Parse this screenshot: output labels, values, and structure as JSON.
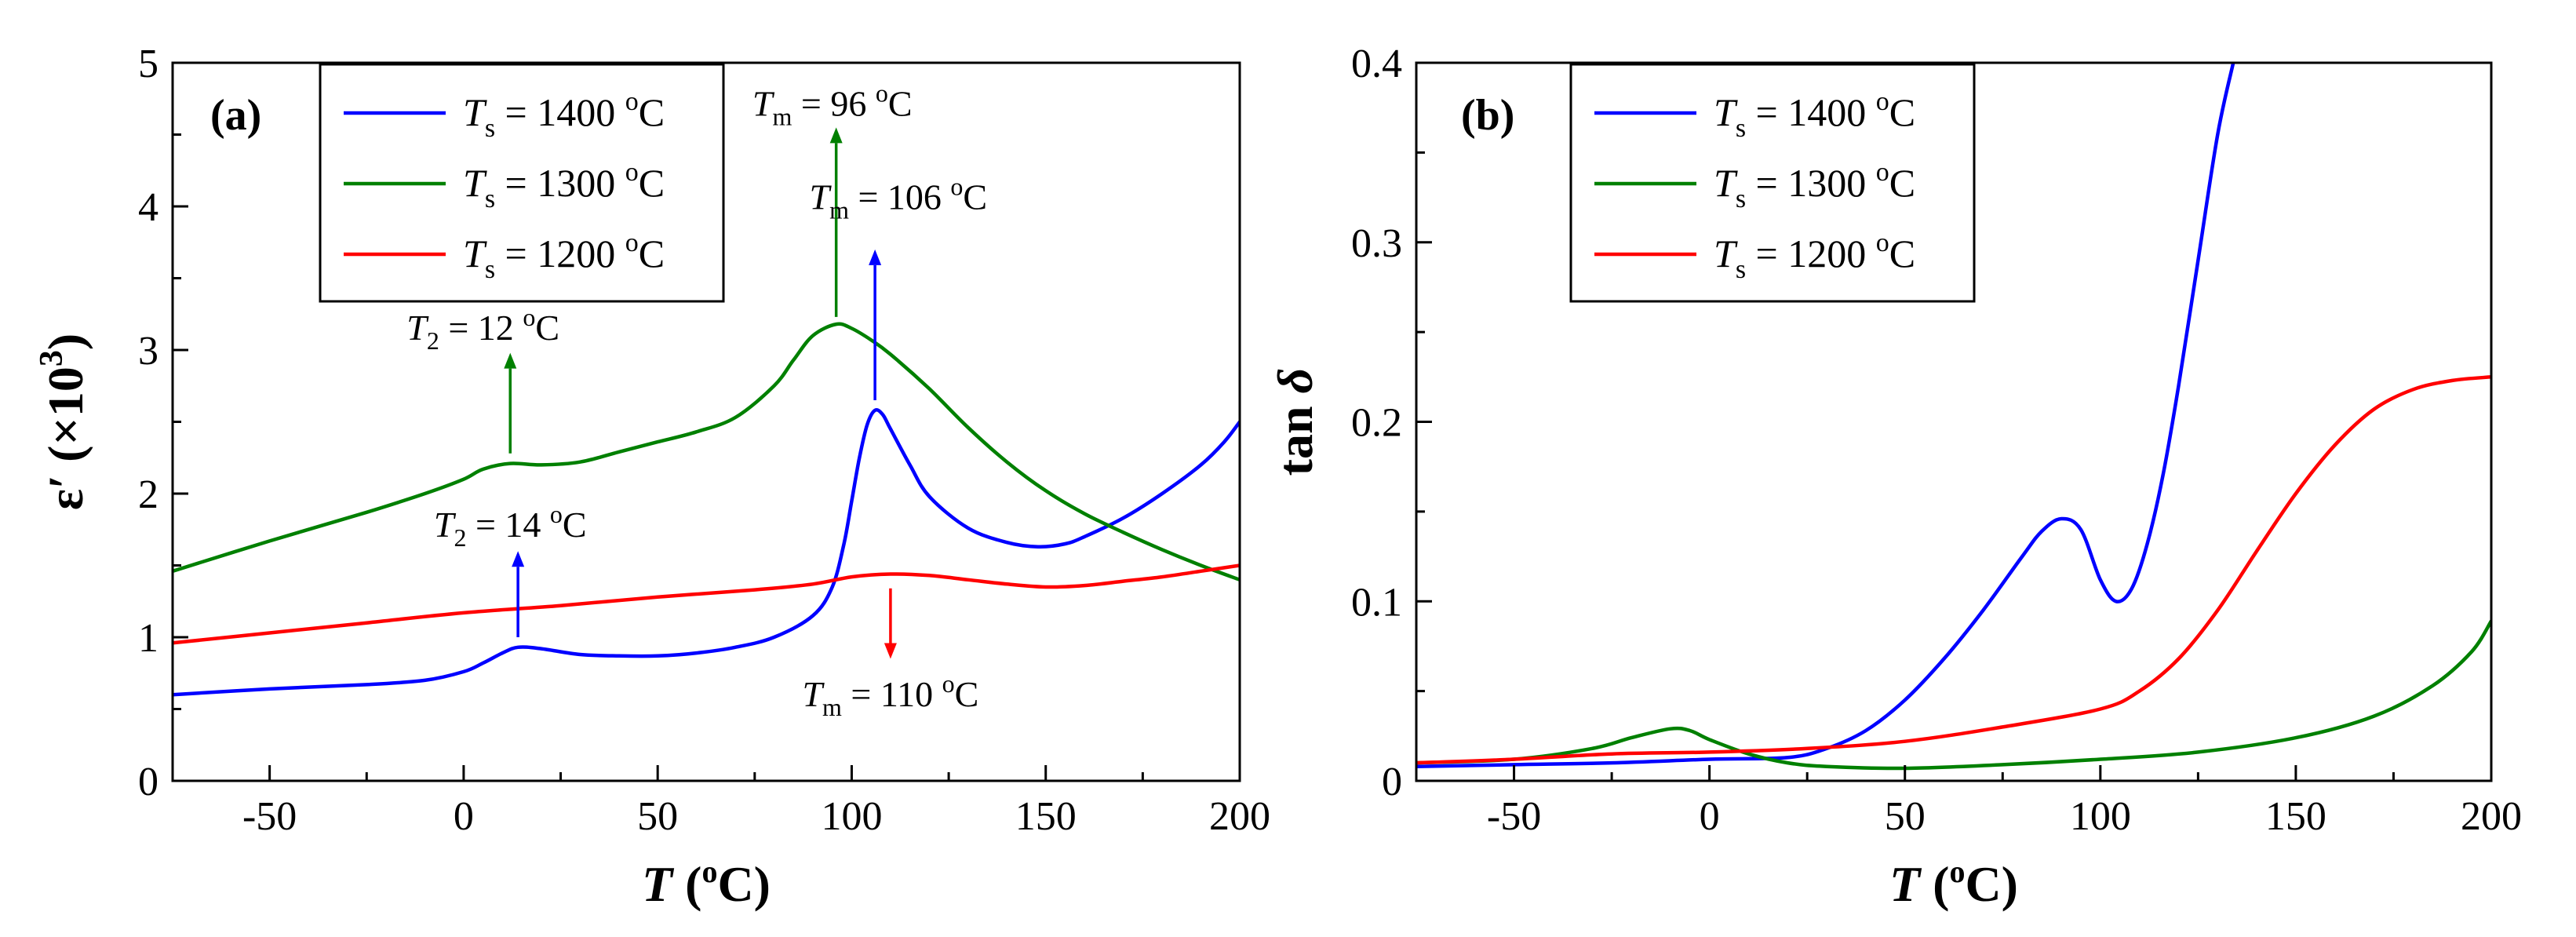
{
  "colors": {
    "blue": "#0000ff",
    "green": "#008000",
    "red": "#ff0000"
  },
  "chart_data": [
    {
      "id": "a",
      "type": "line",
      "panel_label": "(a)",
      "xlabel_var": "T",
      "xlabel_unit_open": " (",
      "xlabel_unit_sup": "o",
      "xlabel_unit_close": "C)",
      "ylabel_main": "ε′ (×10",
      "ylabel_sup": "3",
      "ylabel_close": ")",
      "xlim": [
        -75,
        200
      ],
      "ylim": [
        0,
        5
      ],
      "xticks": [
        -50,
        0,
        50,
        100,
        150,
        200
      ],
      "xtick_labels": [
        "-50",
        "0",
        "50",
        "100",
        "150",
        "200"
      ],
      "yticks": [
        0,
        1,
        2,
        3,
        4,
        5
      ],
      "ytick_labels": [
        "0",
        "1",
        "2",
        "3",
        "4",
        "5"
      ],
      "legend": {
        "position": "top-left",
        "var": "T",
        "sub": "s",
        "eq": " = ",
        "unit_sup": "o",
        "unit": "C"
      },
      "series": [
        {
          "name": "Ts = 1400 oC",
          "legend_value": "1400",
          "color": "blue",
          "x": [
            -75,
            -50,
            -25,
            -10,
            0,
            5,
            10,
            14,
            20,
            30,
            40,
            50,
            60,
            70,
            80,
            90,
            95,
            98,
            100,
            102,
            104,
            106,
            108,
            110,
            115,
            120,
            130,
            140,
            148,
            155,
            160,
            170,
            180,
            190,
            196,
            200
          ],
          "y": [
            0.6,
            0.64,
            0.67,
            0.7,
            0.76,
            0.82,
            0.89,
            0.93,
            0.92,
            0.88,
            0.87,
            0.87,
            0.89,
            0.93,
            1.0,
            1.15,
            1.35,
            1.65,
            1.95,
            2.25,
            2.48,
            2.58,
            2.55,
            2.45,
            2.2,
            1.98,
            1.76,
            1.66,
            1.63,
            1.65,
            1.7,
            1.83,
            2.0,
            2.2,
            2.36,
            2.5
          ]
        },
        {
          "name": "Ts = 1300 oC",
          "legend_value": "1300",
          "color": "green",
          "x": [
            -75,
            -50,
            -25,
            -10,
            0,
            5,
            12,
            20,
            30,
            40,
            50,
            60,
            70,
            80,
            85,
            90,
            96,
            100,
            105,
            110,
            120,
            130,
            140,
            150,
            160,
            170,
            180,
            190,
            200
          ],
          "y": [
            1.46,
            1.67,
            1.87,
            2.0,
            2.1,
            2.17,
            2.21,
            2.2,
            2.22,
            2.29,
            2.36,
            2.43,
            2.53,
            2.75,
            2.93,
            3.1,
            3.18,
            3.15,
            3.07,
            2.97,
            2.73,
            2.46,
            2.22,
            2.02,
            1.86,
            1.73,
            1.61,
            1.5,
            1.4
          ]
        },
        {
          "name": "Ts = 1200 oC",
          "legend_value": "1200",
          "color": "red",
          "x": [
            -75,
            -50,
            -25,
            0,
            25,
            50,
            75,
            90,
            100,
            110,
            120,
            130,
            140,
            150,
            160,
            170,
            180,
            190,
            200
          ],
          "y": [
            0.96,
            1.03,
            1.1,
            1.17,
            1.22,
            1.28,
            1.33,
            1.37,
            1.42,
            1.44,
            1.43,
            1.4,
            1.37,
            1.35,
            1.36,
            1.39,
            1.42,
            1.46,
            1.5
          ]
        }
      ],
      "annotations": [
        {
          "color": "green",
          "var": "T",
          "sub": "2",
          "value": " = 12 ",
          "sup": "o",
          "unit": "C",
          "x": 12,
          "y_from": 2.28,
          "y_to": 2.98,
          "dir": "up",
          "text_x": 5,
          "text_y": 3.07,
          "anchor": "middle"
        },
        {
          "color": "blue",
          "var": "T",
          "sub": "2",
          "value": " = 14 ",
          "sup": "o",
          "unit": "C",
          "x": 14,
          "y_from": 1.0,
          "y_to": 1.6,
          "dir": "up",
          "text_x": 12,
          "text_y": 1.7,
          "anchor": "middle"
        },
        {
          "color": "green",
          "var": "T",
          "sub": "m",
          "value": " = 96 ",
          "sup": "o",
          "unit": "C",
          "x": 96,
          "y_from": 3.23,
          "y_to": 4.55,
          "dir": "up",
          "text_x": 95,
          "text_y": 4.63,
          "anchor": "middle"
        },
        {
          "color": "blue",
          "var": "T",
          "sub": "m",
          "value": " = 106 ",
          "sup": "o",
          "unit": "C",
          "x": 106,
          "y_from": 2.65,
          "y_to": 3.7,
          "dir": "up",
          "text_x": 112,
          "text_y": 3.98,
          "anchor": "middle"
        },
        {
          "color": "red",
          "var": "T",
          "sub": "m",
          "value": " = 110 ",
          "sup": "o",
          "unit": "C",
          "x": 110,
          "y_from": 1.34,
          "y_to": 0.85,
          "dir": "down",
          "text_x": 110,
          "text_y": 0.52,
          "anchor": "middle"
        }
      ]
    },
    {
      "id": "b",
      "type": "line",
      "panel_label": "(b)",
      "xlabel_var": "T",
      "xlabel_unit_open": " (",
      "xlabel_unit_sup": "o",
      "xlabel_unit_close": "C)",
      "ylabel_main": "tan ",
      "ylabel_delta": "δ",
      "xlim": [
        -75,
        200
      ],
      "ylim": [
        0,
        0.4
      ],
      "xticks": [
        -50,
        0,
        50,
        100,
        150,
        200
      ],
      "xtick_labels": [
        "-50",
        "0",
        "50",
        "100",
        "150",
        "200"
      ],
      "yticks": [
        0,
        0.1,
        0.2,
        0.3,
        0.4
      ],
      "ytick_labels": [
        "0",
        "0.1",
        "0.2",
        "0.3",
        "0.4"
      ],
      "legend": {
        "position": "top-left",
        "var": "T",
        "sub": "s",
        "eq": " = ",
        "unit_sup": "o",
        "unit": "C"
      },
      "series": [
        {
          "name": "Ts = 1400 oC",
          "legend_value": "1400",
          "color": "blue",
          "x": [
            -75,
            -50,
            -25,
            0,
            20,
            30,
            40,
            50,
            60,
            70,
            80,
            85,
            90,
            95,
            100,
            104,
            108,
            112,
            116,
            120,
            125,
            130,
            134
          ],
          "y": [
            0.008,
            0.009,
            0.01,
            0.012,
            0.013,
            0.018,
            0.028,
            0.045,
            0.068,
            0.095,
            0.125,
            0.139,
            0.146,
            0.14,
            0.112,
            0.1,
            0.107,
            0.132,
            0.17,
            0.22,
            0.29,
            0.36,
            0.4
          ]
        },
        {
          "name": "Ts = 1300 oC",
          "legend_value": "1300",
          "color": "green",
          "x": [
            -75,
            -50,
            -30,
            -20,
            -10,
            -5,
            0,
            10,
            20,
            30,
            50,
            75,
            100,
            125,
            150,
            170,
            185,
            195,
            200
          ],
          "y": [
            0.01,
            0.012,
            0.018,
            0.024,
            0.029,
            0.028,
            0.023,
            0.015,
            0.01,
            0.008,
            0.007,
            0.009,
            0.012,
            0.016,
            0.024,
            0.036,
            0.053,
            0.072,
            0.089
          ]
        },
        {
          "name": "Ts = 1200 oC",
          "legend_value": "1200",
          "color": "red",
          "x": [
            -75,
            -50,
            -25,
            0,
            25,
            50,
            75,
            100,
            110,
            120,
            130,
            140,
            150,
            160,
            170,
            180,
            190,
            200
          ],
          "y": [
            0.01,
            0.012,
            0.015,
            0.016,
            0.018,
            0.022,
            0.03,
            0.04,
            0.05,
            0.068,
            0.095,
            0.128,
            0.16,
            0.187,
            0.207,
            0.218,
            0.223,
            0.225
          ]
        }
      ]
    }
  ]
}
